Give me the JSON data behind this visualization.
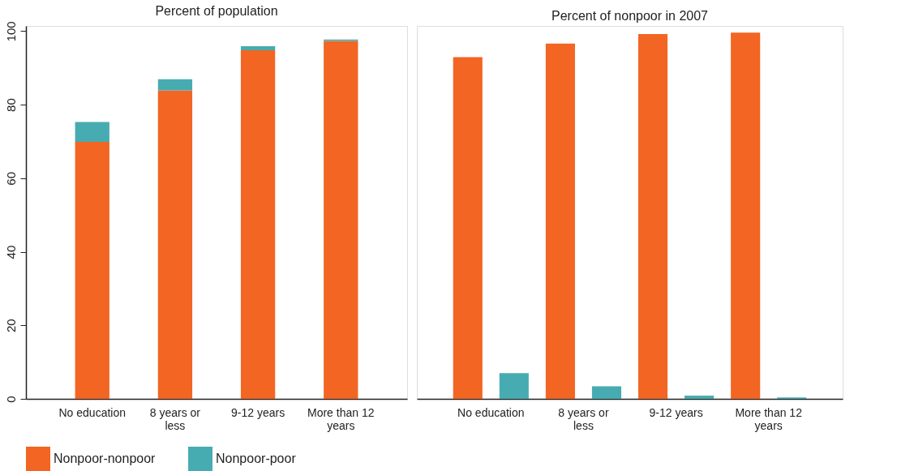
{
  "chart_data": [
    {
      "type": "bar",
      "title": "Percent of population",
      "stacked": true,
      "categories": [
        "No education",
        "8 years or less",
        "9-12 years",
        "More than 12 years"
      ],
      "series": [
        {
          "name": "Nonpoor-nonpoor",
          "color": "#f26522",
          "values": [
            69.9,
            83.9,
            94.8,
            97.3
          ]
        },
        {
          "name": "Nonpoor-poor",
          "color": "#47acb1",
          "values": [
            5.4,
            3.0,
            1.1,
            0.4
          ]
        }
      ],
      "ylim": [
        0,
        101.4
      ],
      "yticks": [
        0,
        20,
        40,
        60,
        80,
        100
      ],
      "grid": false,
      "legend": "bottom"
    },
    {
      "type": "bar",
      "title": "Percent of nonpoor in 2007",
      "categories": [
        "No education",
        "8 years or less",
        "9-12 years",
        "More than 12 years"
      ],
      "series": [
        {
          "name": "Nonpoor-nonpoor",
          "color": "#f26522",
          "values": [
            92.9,
            96.6,
            99.2,
            99.6
          ]
        },
        {
          "name": "Nonpoor-poor",
          "color": "#47acb1",
          "values": [
            7.0,
            3.4,
            0.9,
            0.4
          ]
        }
      ],
      "ylim": [
        0,
        101.4
      ],
      "yticks": [
        0,
        20,
        40,
        60,
        80,
        100
      ],
      "tick_labels": "x",
      "grid": false,
      "legend": "bottom"
    }
  ]
}
